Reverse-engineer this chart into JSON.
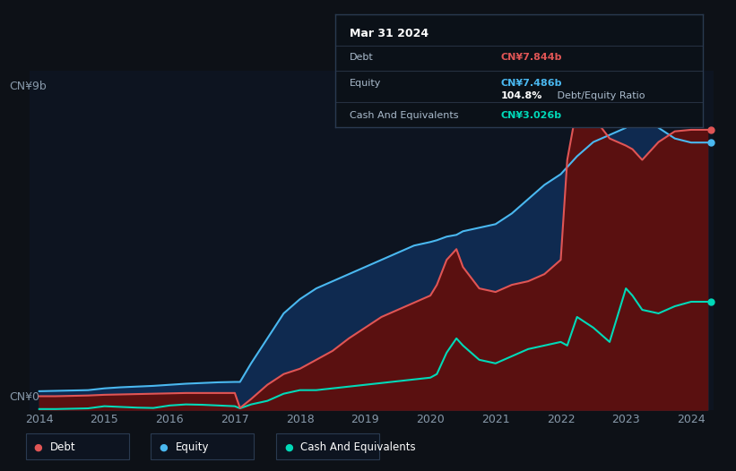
{
  "background_color": "#0d1117",
  "plot_bg_color": "#0d1420",
  "grid_color": "#1e2d40",
  "ylabel_cn9b": "CN¥9b",
  "ylabel_cn0": "CN¥0",
  "x_ticks": [
    2014,
    2015,
    2016,
    2017,
    2018,
    2019,
    2020,
    2021,
    2022,
    2023,
    2024
  ],
  "ylim": [
    0,
    9.5
  ],
  "debt_color": "#e05555",
  "equity_color": "#4ab8f0",
  "cash_color": "#00d9b8",
  "debt_fill": "#5a1010",
  "equity_fill": "#0f2a50",
  "cash_fill": "#0a3030",
  "years": [
    2014.0,
    2014.25,
    2014.5,
    2014.75,
    2015.0,
    2015.25,
    2015.5,
    2015.75,
    2016.0,
    2016.25,
    2016.5,
    2016.75,
    2017.0,
    2017.08,
    2017.25,
    2017.5,
    2017.75,
    2018.0,
    2018.25,
    2018.5,
    2018.75,
    2019.0,
    2019.25,
    2019.5,
    2019.75,
    2020.0,
    2020.1,
    2020.25,
    2020.4,
    2020.5,
    2020.75,
    2021.0,
    2021.25,
    2021.5,
    2021.75,
    2022.0,
    2022.1,
    2022.25,
    2022.5,
    2022.75,
    2023.0,
    2023.1,
    2023.25,
    2023.5,
    2023.75,
    2024.0,
    2024.25
  ],
  "debt": [
    0.38,
    0.38,
    0.39,
    0.4,
    0.42,
    0.43,
    0.44,
    0.45,
    0.46,
    0.47,
    0.47,
    0.47,
    0.47,
    0.05,
    0.3,
    0.7,
    1.0,
    1.15,
    1.4,
    1.65,
    2.0,
    2.3,
    2.6,
    2.8,
    3.0,
    3.2,
    3.5,
    4.2,
    4.5,
    4.0,
    3.4,
    3.3,
    3.5,
    3.6,
    3.8,
    4.2,
    7.0,
    8.5,
    8.2,
    7.6,
    7.4,
    7.3,
    7.0,
    7.5,
    7.8,
    7.844,
    7.844
  ],
  "equity": [
    0.52,
    0.53,
    0.54,
    0.55,
    0.6,
    0.63,
    0.65,
    0.67,
    0.7,
    0.73,
    0.75,
    0.77,
    0.78,
    0.78,
    1.3,
    2.0,
    2.7,
    3.1,
    3.4,
    3.6,
    3.8,
    4.0,
    4.2,
    4.4,
    4.6,
    4.7,
    4.75,
    4.85,
    4.9,
    5.0,
    5.1,
    5.2,
    5.5,
    5.9,
    6.3,
    6.6,
    6.8,
    7.1,
    7.5,
    7.7,
    7.9,
    8.2,
    8.4,
    7.9,
    7.6,
    7.486,
    7.486
  ],
  "cash": [
    0.02,
    0.02,
    0.03,
    0.04,
    0.1,
    0.08,
    0.06,
    0.05,
    0.12,
    0.15,
    0.14,
    0.12,
    0.1,
    0.04,
    0.15,
    0.25,
    0.45,
    0.55,
    0.55,
    0.6,
    0.65,
    0.7,
    0.75,
    0.8,
    0.85,
    0.9,
    1.0,
    1.6,
    2.0,
    1.8,
    1.4,
    1.3,
    1.5,
    1.7,
    1.8,
    1.9,
    1.8,
    2.6,
    2.3,
    1.9,
    3.4,
    3.2,
    2.8,
    2.7,
    2.9,
    3.026,
    3.026
  ],
  "legend_labels": [
    "Debt",
    "Equity",
    "Cash And Equivalents"
  ],
  "legend_colors": [
    "#e05555",
    "#4ab8f0",
    "#00d9b8"
  ],
  "tooltip": {
    "title": "Mar 31 2024",
    "rows": [
      {
        "label": "Debt",
        "value": "CN¥7.844b",
        "value_color": "#e05555"
      },
      {
        "label": "Equity",
        "value": "CN¥7.486b",
        "value_color": "#4ab8f0"
      },
      {
        "label": "",
        "value_bold": "104.8%",
        "value_rest": " Debt/Equity Ratio",
        "value_color": "#ffffff"
      },
      {
        "label": "Cash And Equivalents",
        "value": "CN¥3.026b",
        "value_color": "#00d9b8"
      }
    ]
  }
}
